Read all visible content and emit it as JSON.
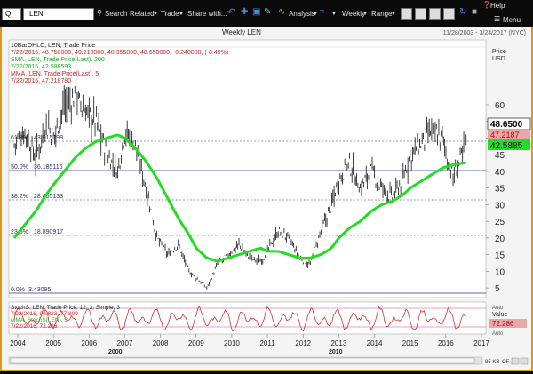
{
  "toolbar": {
    "symbol_dropdown": "Q",
    "symbol_input": "LEN",
    "search": "Search",
    "related": "Related",
    "trade": "Trade",
    "share": "Share with...",
    "analysis": "Analysis",
    "weekly": "Weekly",
    "range": "Range",
    "help": "Help",
    "menu": "Menu"
  },
  "chart": {
    "title": "Weekly LEN",
    "date_range": "11/28/2003 - 3/24/2017 (NYC)",
    "info": {
      "line1": "10BarOHLC, LEN, Trade Price",
      "line2": "7/22/2016, 48.750000, 49.210000, 48.355000, 48.650000, -0.240000, (-0.49%)",
      "line3": "SMA, LEN, Trade Price(Last), 200",
      "line4": "7/22/2016, 42.588593",
      "line5": "MMA, LEN, Trade Price(Last), 5",
      "line6": "7/22/2016, 47.218780"
    },
    "price_label": "Price",
    "currency_label": "USD",
    "y_ticks": [
      "5",
      "10",
      "15",
      "20",
      "25",
      "30",
      "35",
      "40",
      "45",
      "50",
      "55",
      "60"
    ],
    "fib_levels": [
      {
        "label": "0.0%",
        "value": "3.43095"
      },
      {
        "label": "23.6%",
        "value": "18.890917"
      },
      {
        "label": "38.2%",
        "value": "28.455133"
      },
      {
        "label": "50.0%",
        "value": "36.185116"
      },
      {
        "label": "61.8%",
        "value": "43.915099"
      }
    ],
    "last_price": "48.6500",
    "mma_value": "47.2187",
    "sma_value": "42.5885",
    "year_ticks": [
      "2004",
      "2005",
      "2006",
      "2007",
      "2008",
      "2009",
      "2010",
      "2011",
      "2012",
      "2013",
      "2014",
      "2015",
      "2016",
      "2017"
    ],
    "decade_labels": [
      "2000",
      "2010"
    ],
    "colors": {
      "price": "#111111",
      "sma": "#22dd22",
      "mma": "#cc2222",
      "stoch": "#cc3333",
      "fib": "#333399",
      "frame": "#d99a1a"
    }
  },
  "stoch": {
    "line1": "StochS, LEN, Trade Price, 12, 3, Simple, 3",
    "line2": "7/22/2016, 90.823, 77.809",
    "line3": "MMA, StochS(LEN), 3",
    "line4": "7/22/2016, 72.286",
    "value_label": "Value",
    "value": "72.286",
    "auto_label": "Auto",
    "auto_label2": "Auto"
  },
  "scroll": {
    "zoom": "85 KB",
    "page": "OF"
  },
  "chart_data": {
    "type": "line",
    "title": "Weekly LEN",
    "x": [
      2003.9,
      2004.2,
      2004.5,
      2004.8,
      2005.0,
      2005.3,
      2005.6,
      2005.9,
      2006.2,
      2006.5,
      2006.8,
      2007.0,
      2007.3,
      2007.6,
      2007.9,
      2008.2,
      2008.5,
      2008.8,
      2009.0,
      2009.3,
      2009.6,
      2009.9,
      2010.2,
      2010.5,
      2010.8,
      2011.0,
      2011.3,
      2011.6,
      2011.9,
      2012.2,
      2012.5,
      2012.8,
      2013.0,
      2013.3,
      2013.6,
      2013.9,
      2014.2,
      2014.5,
      2014.8,
      2015.0,
      2015.3,
      2015.6,
      2015.9,
      2016.2,
      2016.5,
      2016.57
    ],
    "series": [
      {
        "name": "LEN",
        "values": [
          48,
          52,
          44,
          55,
          50,
          60,
          62,
          58,
          55,
          45,
          40,
          52,
          48,
          35,
          20,
          15,
          18,
          10,
          8,
          5,
          12,
          15,
          18,
          14,
          13,
          16,
          22,
          20,
          14,
          12,
          22,
          30,
          38,
          42,
          35,
          40,
          35,
          32,
          38,
          45,
          48,
          52,
          50,
          38,
          46,
          48.65
        ]
      },
      {
        "name": "SMA 200",
        "values": [
          20,
          24,
          28,
          33,
          36,
          40,
          44,
          47,
          49,
          50,
          51,
          50,
          47,
          43,
          38,
          32,
          26,
          21,
          17,
          14,
          13,
          14,
          15,
          16,
          17,
          16,
          16,
          15,
          14,
          14,
          15,
          17,
          20,
          23,
          25,
          28,
          30,
          31,
          33,
          35,
          37,
          39,
          41,
          42,
          42.5,
          42.59
        ]
      }
    ],
    "ylabel": "Price USD",
    "ylim": [
      3,
      62
    ],
    "grid": false
  }
}
